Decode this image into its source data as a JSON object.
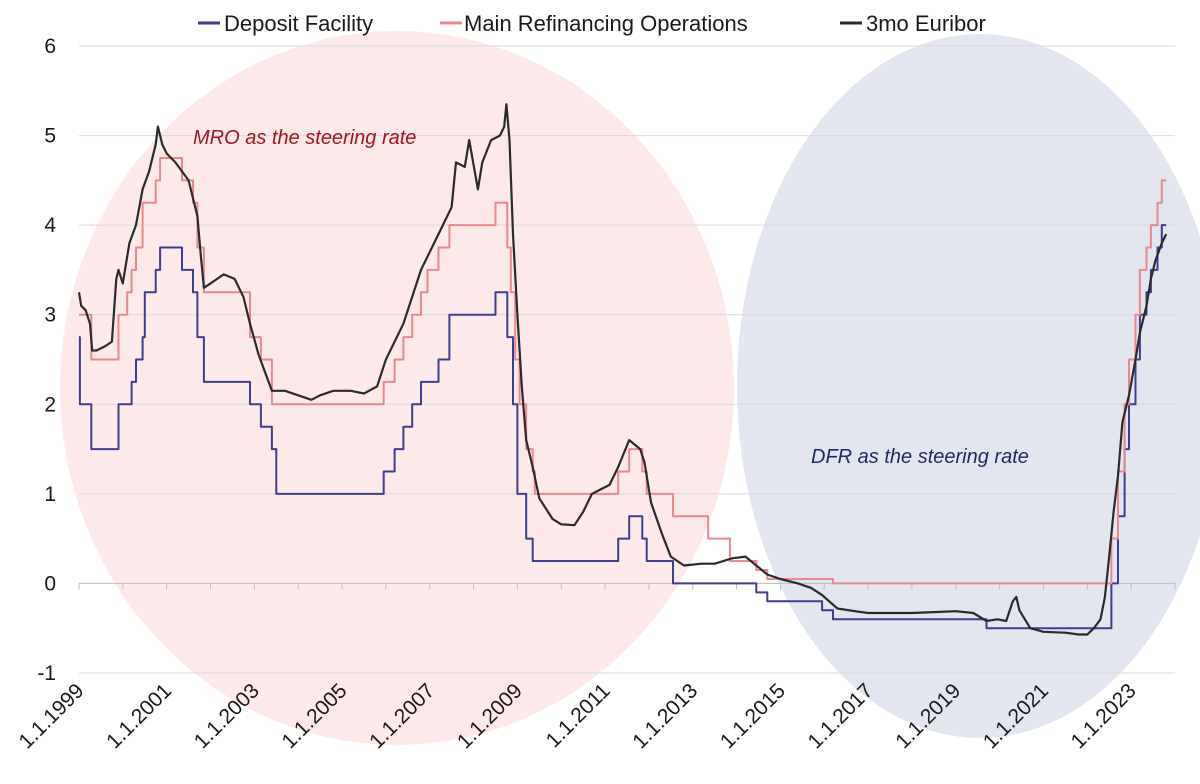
{
  "chart_data": {
    "type": "line",
    "title": "",
    "xlabel": "",
    "ylabel": "",
    "ylim": [
      -1,
      6
    ],
    "yticks": [
      "-1",
      "0",
      "1",
      "2",
      "3",
      "4",
      "5",
      "6"
    ],
    "xlim": [
      1999.0,
      2024.0
    ],
    "xticks": [
      {
        "label": "1.1.1999",
        "t": 1999.0
      },
      {
        "label": "1.1.2001",
        "t": 2001.0
      },
      {
        "label": "1.1.2003",
        "t": 2003.0
      },
      {
        "label": "1.1.2005",
        "t": 2005.0
      },
      {
        "label": "1.1.2007",
        "t": 2007.0
      },
      {
        "label": "1.1.2009",
        "t": 2009.0
      },
      {
        "label": "1.1.2011",
        "t": 2011.0
      },
      {
        "label": "1.1.2013",
        "t": 2013.0
      },
      {
        "label": "1.1.2015",
        "t": 2015.0
      },
      {
        "label": "1.1.2017",
        "t": 2017.0
      },
      {
        "label": "1.1.2019",
        "t": 2019.0
      },
      {
        "label": "1.1.2021",
        "t": 2021.0
      },
      {
        "label": "1.1.2023",
        "t": 2023.0
      }
    ],
    "legend": {
      "position": "top",
      "items": [
        {
          "name": "Deposit Facility",
          "color": "#3c3f8f"
        },
        {
          "name": "Main Refinancing Operations",
          "color": "#e8898e"
        },
        {
          "name": "3mo Euribor",
          "color": "#2b2b2b"
        }
      ]
    },
    "annotations": [
      {
        "text": "MRO as the steering rate",
        "color": "#a3141c"
      },
      {
        "text": "DFR as the steering rate",
        "color": "#1b2a5e"
      }
    ],
    "regions": [
      {
        "name": "mro-era-region",
        "color": "#fde9e9"
      },
      {
        "name": "dfr-era-region",
        "color": "#e3e5ef"
      }
    ],
    "series": [
      {
        "name": "Deposit Facility",
        "step": true,
        "points": [
          [
            1999.0,
            2.75
          ],
          [
            1999.02,
            2.0
          ],
          [
            1999.28,
            1.5
          ],
          [
            1999.9,
            2.0
          ],
          [
            2000.2,
            2.25
          ],
          [
            2000.3,
            2.5
          ],
          [
            2000.45,
            2.75
          ],
          [
            2000.5,
            3.25
          ],
          [
            2000.75,
            3.5
          ],
          [
            2000.85,
            3.75
          ],
          [
            2001.35,
            3.5
          ],
          [
            2001.6,
            3.25
          ],
          [
            2001.7,
            2.75
          ],
          [
            2001.85,
            2.25
          ],
          [
            2002.9,
            2.0
          ],
          [
            2003.15,
            1.75
          ],
          [
            2003.4,
            1.5
          ],
          [
            2003.5,
            1.0
          ],
          [
            2005.95,
            1.25
          ],
          [
            2006.2,
            1.5
          ],
          [
            2006.4,
            1.75
          ],
          [
            2006.6,
            2.0
          ],
          [
            2006.8,
            2.25
          ],
          [
            2007.2,
            2.5
          ],
          [
            2007.45,
            3.0
          ],
          [
            2008.5,
            3.25
          ],
          [
            2008.77,
            2.75
          ],
          [
            2008.85,
            2.75
          ],
          [
            2008.9,
            2.0
          ],
          [
            2009.0,
            1.0
          ],
          [
            2009.2,
            0.5
          ],
          [
            2009.35,
            0.25
          ],
          [
            2011.3,
            0.5
          ],
          [
            2011.55,
            0.75
          ],
          [
            2011.85,
            0.5
          ],
          [
            2011.95,
            0.25
          ],
          [
            2012.55,
            0.0
          ],
          [
            2014.45,
            -0.1
          ],
          [
            2014.7,
            -0.2
          ],
          [
            2015.95,
            -0.3
          ],
          [
            2016.2,
            -0.4
          ],
          [
            2019.7,
            -0.5
          ],
          [
            2022.55,
            0.0
          ],
          [
            2022.7,
            0.75
          ],
          [
            2022.85,
            1.5
          ],
          [
            2022.95,
            2.0
          ],
          [
            2023.1,
            2.5
          ],
          [
            2023.2,
            3.0
          ],
          [
            2023.35,
            3.25
          ],
          [
            2023.45,
            3.5
          ],
          [
            2023.6,
            3.75
          ],
          [
            2023.7,
            4.0
          ],
          [
            2023.8,
            4.0
          ]
        ]
      },
      {
        "name": "Main Refinancing Operations",
        "step": true,
        "points": [
          [
            1999.0,
            3.0
          ],
          [
            1999.28,
            2.5
          ],
          [
            1999.9,
            3.0
          ],
          [
            2000.1,
            3.25
          ],
          [
            2000.2,
            3.5
          ],
          [
            2000.3,
            3.75
          ],
          [
            2000.45,
            4.25
          ],
          [
            2000.75,
            4.5
          ],
          [
            2000.85,
            4.75
          ],
          [
            2001.35,
            4.5
          ],
          [
            2001.6,
            4.25
          ],
          [
            2001.7,
            3.75
          ],
          [
            2001.85,
            3.25
          ],
          [
            2002.9,
            2.75
          ],
          [
            2003.15,
            2.5
          ],
          [
            2003.4,
            2.0
          ],
          [
            2005.95,
            2.25
          ],
          [
            2006.2,
            2.5
          ],
          [
            2006.4,
            2.75
          ],
          [
            2006.6,
            3.0
          ],
          [
            2006.8,
            3.25
          ],
          [
            2006.95,
            3.5
          ],
          [
            2007.2,
            3.75
          ],
          [
            2007.45,
            4.0
          ],
          [
            2008.5,
            4.25
          ],
          [
            2008.77,
            3.75
          ],
          [
            2008.85,
            3.25
          ],
          [
            2008.95,
            2.5
          ],
          [
            2009.05,
            2.0
          ],
          [
            2009.2,
            1.5
          ],
          [
            2009.35,
            1.25
          ],
          [
            2009.4,
            1.0
          ],
          [
            2011.3,
            1.25
          ],
          [
            2011.55,
            1.5
          ],
          [
            2011.85,
            1.25
          ],
          [
            2011.95,
            1.0
          ],
          [
            2012.55,
            0.75
          ],
          [
            2013.35,
            0.5
          ],
          [
            2013.85,
            0.25
          ],
          [
            2014.45,
            0.15
          ],
          [
            2014.7,
            0.05
          ],
          [
            2016.2,
            0.0
          ],
          [
            2022.55,
            0.5
          ],
          [
            2022.7,
            1.25
          ],
          [
            2022.85,
            2.0
          ],
          [
            2022.95,
            2.5
          ],
          [
            2023.1,
            3.0
          ],
          [
            2023.2,
            3.5
          ],
          [
            2023.35,
            3.75
          ],
          [
            2023.45,
            4.0
          ],
          [
            2023.6,
            4.25
          ],
          [
            2023.7,
            4.5
          ],
          [
            2023.8,
            4.5
          ]
        ]
      },
      {
        "name": "3mo Euribor",
        "step": false,
        "points": [
          [
            1999.0,
            3.25
          ],
          [
            1999.05,
            3.1
          ],
          [
            1999.15,
            3.05
          ],
          [
            1999.25,
            2.9
          ],
          [
            1999.3,
            2.6
          ],
          [
            1999.4,
            2.6
          ],
          [
            1999.6,
            2.65
          ],
          [
            1999.75,
            2.7
          ],
          [
            1999.85,
            3.4
          ],
          [
            1999.9,
            3.5
          ],
          [
            2000.0,
            3.35
          ],
          [
            2000.15,
            3.8
          ],
          [
            2000.3,
            4.0
          ],
          [
            2000.45,
            4.4
          ],
          [
            2000.6,
            4.6
          ],
          [
            2000.75,
            4.9
          ],
          [
            2000.8,
            5.1
          ],
          [
            2000.9,
            4.9
          ],
          [
            2001.0,
            4.8
          ],
          [
            2001.2,
            4.7
          ],
          [
            2001.35,
            4.6
          ],
          [
            2001.5,
            4.5
          ],
          [
            2001.7,
            4.1
          ],
          [
            2001.78,
            3.65
          ],
          [
            2001.85,
            3.3
          ],
          [
            2002.0,
            3.35
          ],
          [
            2002.3,
            3.45
          ],
          [
            2002.55,
            3.4
          ],
          [
            2002.75,
            3.2
          ],
          [
            2002.9,
            2.9
          ],
          [
            2003.1,
            2.55
          ],
          [
            2003.4,
            2.15
          ],
          [
            2003.7,
            2.15
          ],
          [
            2004.0,
            2.1
          ],
          [
            2004.3,
            2.05
          ],
          [
            2004.5,
            2.1
          ],
          [
            2004.8,
            2.15
          ],
          [
            2005.2,
            2.15
          ],
          [
            2005.5,
            2.12
          ],
          [
            2005.8,
            2.2
          ],
          [
            2006.0,
            2.5
          ],
          [
            2006.4,
            2.9
          ],
          [
            2006.8,
            3.5
          ],
          [
            2007.2,
            3.9
          ],
          [
            2007.5,
            4.2
          ],
          [
            2007.6,
            4.7
          ],
          [
            2007.8,
            4.65
          ],
          [
            2007.9,
            4.95
          ],
          [
            2008.1,
            4.4
          ],
          [
            2008.2,
            4.7
          ],
          [
            2008.4,
            4.95
          ],
          [
            2008.6,
            5.0
          ],
          [
            2008.7,
            5.1
          ],
          [
            2008.75,
            5.35
          ],
          [
            2008.82,
            4.95
          ],
          [
            2008.9,
            3.9
          ],
          [
            2009.0,
            3.0
          ],
          [
            2009.1,
            2.2
          ],
          [
            2009.2,
            1.6
          ],
          [
            2009.35,
            1.3
          ],
          [
            2009.5,
            0.95
          ],
          [
            2009.8,
            0.72
          ],
          [
            2010.0,
            0.66
          ],
          [
            2010.3,
            0.65
          ],
          [
            2010.5,
            0.8
          ],
          [
            2010.7,
            1.0
          ],
          [
            2010.9,
            1.05
          ],
          [
            2011.1,
            1.1
          ],
          [
            2011.3,
            1.3
          ],
          [
            2011.55,
            1.6
          ],
          [
            2011.8,
            1.5
          ],
          [
            2011.9,
            1.35
          ],
          [
            2012.05,
            0.9
          ],
          [
            2012.3,
            0.55
          ],
          [
            2012.5,
            0.3
          ],
          [
            2012.8,
            0.2
          ],
          [
            2013.2,
            0.22
          ],
          [
            2013.5,
            0.22
          ],
          [
            2013.9,
            0.28
          ],
          [
            2014.2,
            0.3
          ],
          [
            2014.45,
            0.2
          ],
          [
            2014.7,
            0.1
          ],
          [
            2015.0,
            0.05
          ],
          [
            2015.4,
            0.0
          ],
          [
            2015.7,
            -0.05
          ],
          [
            2015.95,
            -0.13
          ],
          [
            2016.3,
            -0.28
          ],
          [
            2016.7,
            -0.31
          ],
          [
            2017.0,
            -0.33
          ],
          [
            2017.5,
            -0.33
          ],
          [
            2018.0,
            -0.33
          ],
          [
            2018.5,
            -0.32
          ],
          [
            2019.0,
            -0.31
          ],
          [
            2019.4,
            -0.33
          ],
          [
            2019.7,
            -0.42
          ],
          [
            2019.95,
            -0.4
          ],
          [
            2020.15,
            -0.42
          ],
          [
            2020.3,
            -0.2
          ],
          [
            2020.38,
            -0.15
          ],
          [
            2020.45,
            -0.3
          ],
          [
            2020.7,
            -0.5
          ],
          [
            2021.0,
            -0.54
          ],
          [
            2021.5,
            -0.55
          ],
          [
            2021.8,
            -0.57
          ],
          [
            2022.0,
            -0.57
          ],
          [
            2022.15,
            -0.5
          ],
          [
            2022.3,
            -0.4
          ],
          [
            2022.4,
            -0.15
          ],
          [
            2022.5,
            0.3
          ],
          [
            2022.6,
            0.8
          ],
          [
            2022.7,
            1.2
          ],
          [
            2022.8,
            1.8
          ],
          [
            2022.95,
            2.1
          ],
          [
            2023.1,
            2.5
          ],
          [
            2023.2,
            2.8
          ],
          [
            2023.35,
            3.1
          ],
          [
            2023.45,
            3.4
          ],
          [
            2023.55,
            3.6
          ],
          [
            2023.7,
            3.8
          ],
          [
            2023.8,
            3.9
          ]
        ]
      }
    ]
  }
}
